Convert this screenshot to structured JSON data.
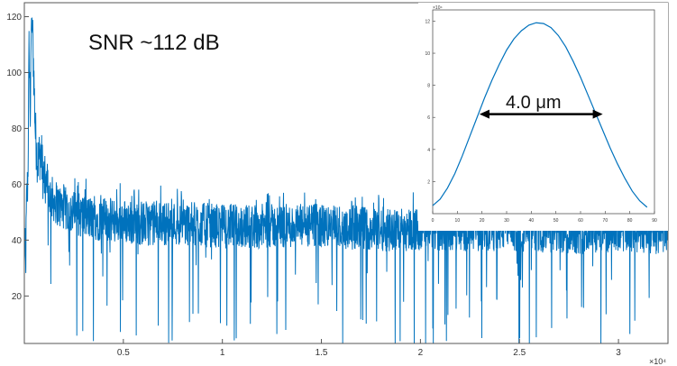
{
  "chart_data": [
    {
      "type": "line",
      "annotation": "SNR ~112 dB",
      "x_tick_labels": [
        "0.5",
        "1",
        "1.5",
        "2",
        "2.5",
        "3"
      ],
      "x_exponent_label": "×10⁴",
      "y_tick_labels": [
        "20",
        "40",
        "60",
        "80",
        "100",
        "120"
      ],
      "xlim": [
        0,
        32500
      ],
      "ylim": [
        3,
        125
      ],
      "x_ticks": [
        5000,
        10000,
        15000,
        20000,
        25000,
        30000
      ],
      "y_ticks": [
        20,
        40,
        60,
        80,
        100,
        120
      ],
      "grid": false,
      "line_color": "#0072BD",
      "series": [
        {
          "peak": {
            "x": 380,
            "y": 122
          },
          "noise_floor_mean": 45,
          "noise_floor_typical_range": [
            32,
            58
          ],
          "noise_floor_min": 3,
          "points": [
            [
              0,
              45
            ],
            [
              60,
              28
            ],
            [
              120,
              55
            ],
            [
              180,
              62
            ],
            [
              240,
              110
            ],
            [
              300,
              85
            ],
            [
              380,
              122
            ],
            [
              460,
              104
            ],
            [
              560,
              78
            ],
            [
              680,
              68
            ],
            [
              820,
              72
            ],
            [
              960,
              63
            ],
            [
              1100,
              58
            ],
            [
              1400,
              55
            ],
            [
              1800,
              52
            ],
            [
              2400,
              50
            ],
            [
              3200,
              48
            ],
            [
              4500,
              47
            ],
            [
              6000,
              46
            ],
            [
              8000,
              46
            ],
            [
              10000,
              45
            ],
            [
              12000,
              45
            ],
            [
              15000,
              45
            ],
            [
              18000,
              44
            ],
            [
              21000,
              44
            ],
            [
              24000,
              44
            ],
            [
              27000,
              43
            ],
            [
              30000,
              43
            ],
            [
              32500,
              43
            ]
          ]
        }
      ]
    },
    {
      "type": "line",
      "label": "4.0 μm",
      "x_tick_labels": [
        "0",
        "10",
        "20",
        "30",
        "40",
        "50",
        "60",
        "70",
        "80",
        "90"
      ],
      "y_tick_labels": [
        "2",
        "4",
        "6",
        "8",
        "10",
        "12"
      ],
      "y_exponent_label": "×10⁴",
      "xlim": [
        0,
        90
      ],
      "ylim": [
        0,
        12.7
      ],
      "x_ticks": [
        0,
        10,
        20,
        30,
        40,
        50,
        60,
        70,
        80,
        90
      ],
      "y_ticks": [
        2,
        4,
        6,
        8,
        10,
        12
      ],
      "grid": false,
      "line_color": "#0072BD",
      "arrow_span": [
        19,
        69
      ],
      "arrow_level": 6.2,
      "series": [
        {
          "points": [
            [
              0,
              0.5
            ],
            [
              3,
              0.9
            ],
            [
              6,
              1.6
            ],
            [
              9,
              2.5
            ],
            [
              12,
              3.6
            ],
            [
              15,
              4.8
            ],
            [
              18,
              6.0
            ],
            [
              21,
              7.2
            ],
            [
              24,
              8.3
            ],
            [
              27,
              9.3
            ],
            [
              30,
              10.2
            ],
            [
              33,
              10.9
            ],
            [
              36,
              11.4
            ],
            [
              39,
              11.75
            ],
            [
              42,
              11.9
            ],
            [
              45,
              11.85
            ],
            [
              48,
              11.6
            ],
            [
              51,
              11.1
            ],
            [
              54,
              10.4
            ],
            [
              57,
              9.5
            ],
            [
              60,
              8.5
            ],
            [
              63,
              7.4
            ],
            [
              66,
              6.3
            ],
            [
              69,
              5.2
            ],
            [
              72,
              4.1
            ],
            [
              75,
              3.1
            ],
            [
              78,
              2.2
            ],
            [
              81,
              1.4
            ],
            [
              84,
              0.8
            ],
            [
              87,
              0.4
            ]
          ]
        }
      ]
    }
  ]
}
